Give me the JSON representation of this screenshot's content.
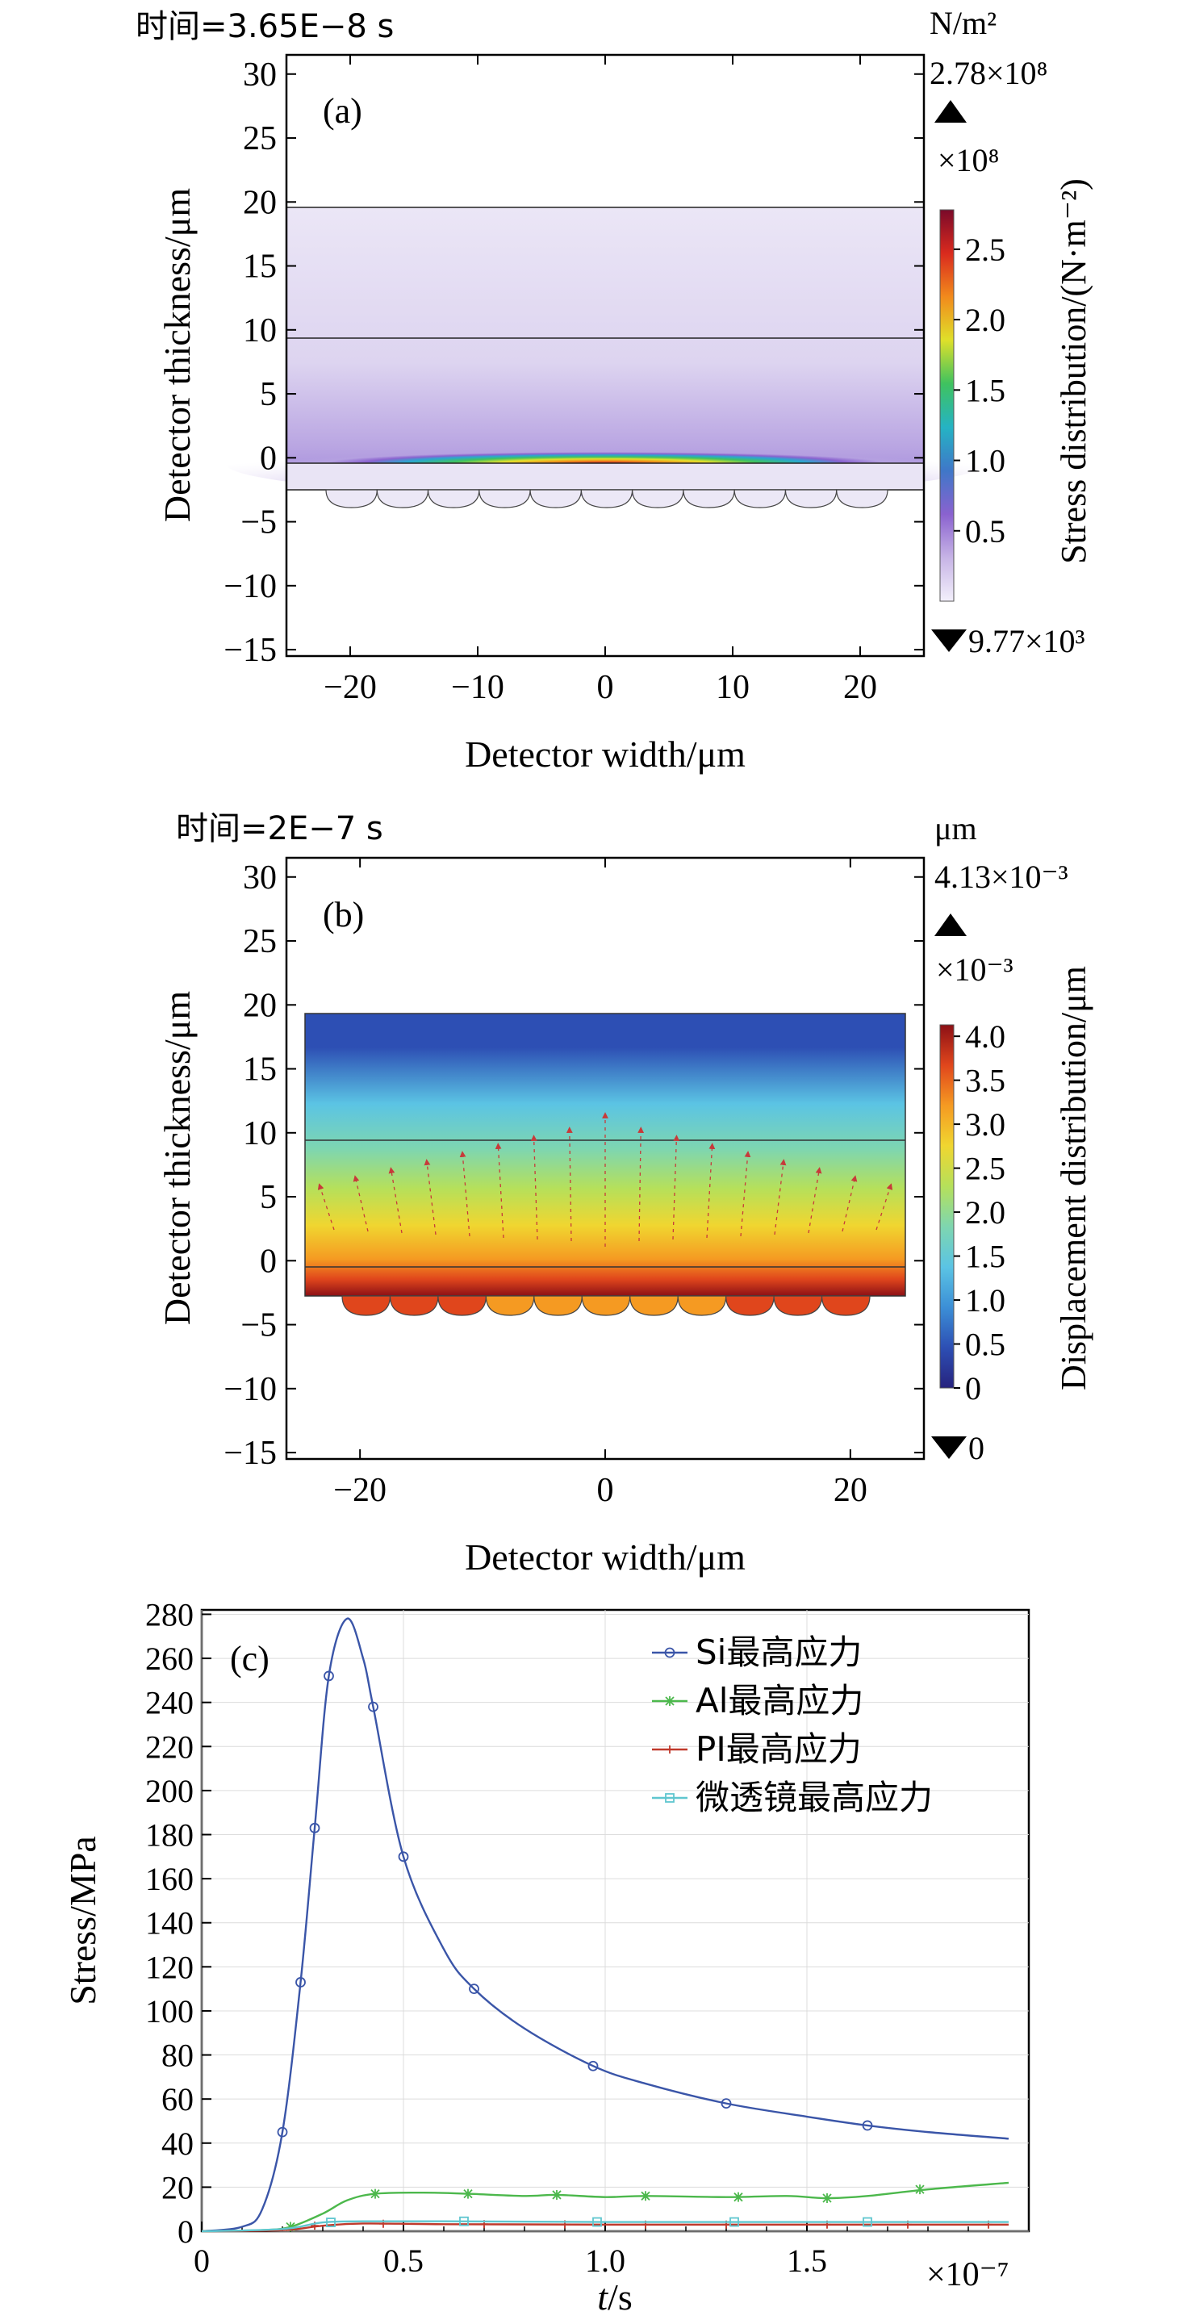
{
  "panel_a": {
    "time_label": "时间=3.65E−8 s",
    "panel_tag": "(a)",
    "unit_label": "N/m²",
    "max_label": "2.78×10⁸",
    "multiplier_label": "×10⁸",
    "min_label": "9.77×10³",
    "colorbar_title": "Stress distribution/(N·m⁻²)",
    "colorbar_ticks": [
      "0.5",
      "1.0",
      "1.5",
      "2.0",
      "2.5"
    ],
    "colorbar_values": [
      0.5,
      1.0,
      1.5,
      2.0,
      2.5
    ],
    "colorbar_range": [
      9.77e-05,
      2.78
    ],
    "colormap": [
      "#f3f0fb",
      "#c7b4e6",
      "#8a62cf",
      "#3f77c8",
      "#25b3c4",
      "#3fc25f",
      "#dfe02a",
      "#f28a1c",
      "#d92a1e",
      "#7a0a2a"
    ],
    "xlabel": "Detector width/μm",
    "ylabel": "Detector thickness/μm",
    "xticks": [
      "−20",
      "−10",
      "0",
      "10",
      "20"
    ],
    "xtick_values": [
      -20,
      -10,
      0,
      10,
      20
    ],
    "yticks": [
      "30",
      "25",
      "20",
      "15",
      "10",
      "5",
      "0",
      "−5",
      "−10",
      "−15"
    ],
    "ytick_values": [
      30,
      25,
      20,
      15,
      10,
      5,
      0,
      -5,
      -10,
      -15
    ],
    "xlim": [
      -25,
      25
    ],
    "ylim": [
      -15.5,
      31.5
    ]
  },
  "panel_b": {
    "time_label": "时间=2E−7 s",
    "panel_tag": "(b)",
    "unit_label": "μm",
    "max_label": "4.13×10⁻³",
    "multiplier_label": "×10⁻³",
    "min_label": "0",
    "colorbar_title": "Displacement distribution/μm",
    "colorbar_ticks": [
      "0",
      "0.5",
      "1.0",
      "1.5",
      "2.0",
      "2.5",
      "3.0",
      "3.5",
      "4.0"
    ],
    "colorbar_values": [
      0,
      0.5,
      1.0,
      1.5,
      2.0,
      2.5,
      3.0,
      3.5,
      4.0
    ],
    "colorbar_range": [
      0,
      4.13
    ],
    "colormap": [
      "#27237e",
      "#2d4fb4",
      "#3c8fd6",
      "#5bc4e4",
      "#7ed6b0",
      "#b6e05a",
      "#f0d630",
      "#f59a22",
      "#e0461c",
      "#8c1016"
    ],
    "xlabel": "Detector width/μm",
    "ylabel": "Detector thickness/μm",
    "xticks": [
      "−20",
      "0",
      "20"
    ],
    "xtick_values": [
      -20,
      0,
      20
    ],
    "yticks": [
      "30",
      "25",
      "20",
      "15",
      "10",
      "5",
      "0",
      "−5",
      "−10",
      "−15"
    ],
    "ytick_values": [
      30,
      25,
      20,
      15,
      10,
      5,
      0,
      -5,
      -10,
      -15
    ],
    "xlim": [
      -26,
      26
    ],
    "ylim": [
      -15.5,
      31.5
    ]
  },
  "chart_data": {
    "type": "line",
    "panel_tag": "(c)",
    "xlabel_italic": "t",
    "xlabel_unit": "/s",
    "ylabel": "Stress/MPa",
    "x_multiplier": "×10⁻⁷",
    "xlim": [
      0,
      2.05
    ],
    "ylim": [
      0,
      282
    ],
    "xticks": [
      "0",
      "0.5",
      "1.0",
      "1.5"
    ],
    "xtick_values": [
      0,
      0.5,
      1.0,
      1.5
    ],
    "yticks": [
      "0",
      "20",
      "40",
      "60",
      "80",
      "100",
      "120",
      "140",
      "160",
      "180",
      "200",
      "220",
      "240",
      "260",
      "280"
    ],
    "ytick_values": [
      0,
      20,
      40,
      60,
      80,
      100,
      120,
      140,
      160,
      180,
      200,
      220,
      240,
      260,
      280
    ],
    "grid": true,
    "legend_position": "top-right",
    "series": [
      {
        "name": "Si最高应力",
        "color": "#3a55a8",
        "marker": "circle",
        "x": [
          0,
          0.1,
          0.15,
          0.2,
          0.245,
          0.28,
          0.315,
          0.36,
          0.4,
          0.425,
          0.5,
          0.6,
          0.675,
          0.8,
          0.97,
          1.1,
          1.3,
          1.5,
          1.65,
          1.8,
          2.0
        ],
        "y": [
          0,
          2,
          10,
          45,
          113,
          183,
          252,
          278,
          260,
          238,
          170,
          128,
          110,
          92,
          75,
          67,
          58,
          52,
          48,
          45,
          42
        ],
        "markers_x": [
          0.2,
          0.245,
          0.28,
          0.315,
          0.425,
          0.5,
          0.675,
          0.97,
          1.3,
          1.65
        ],
        "markers_y": [
          45,
          113,
          183,
          252,
          238,
          170,
          110,
          75,
          58,
          48
        ]
      },
      {
        "name": "Al最高应力",
        "color": "#4cb84c",
        "marker": "x",
        "x": [
          0,
          0.15,
          0.22,
          0.3,
          0.36,
          0.43,
          0.55,
          0.66,
          0.8,
          0.88,
          1.0,
          1.1,
          1.3,
          1.45,
          1.55,
          1.65,
          1.8,
          2.0
        ],
        "y": [
          0,
          0.5,
          2,
          8,
          14,
          17,
          17.5,
          17,
          16,
          16.5,
          15.5,
          16,
          15.5,
          16,
          15,
          16,
          19,
          22
        ],
        "markers_x": [
          0.22,
          0.43,
          0.66,
          0.88,
          1.1,
          1.33,
          1.55,
          1.78
        ],
        "markers_y": [
          2,
          17,
          17,
          16.5,
          16,
          15.5,
          15,
          19
        ]
      },
      {
        "name": "PI最高应力",
        "color": "#c0392b",
        "marker": "plus",
        "x": [
          0,
          0.2,
          0.3,
          0.4,
          0.6,
          1.0,
          1.5,
          2.0
        ],
        "y": [
          0,
          0.5,
          2.5,
          3.5,
          3.2,
          3.0,
          3.0,
          3.0
        ],
        "markers_x": [
          0.28,
          0.45,
          0.7,
          0.9,
          1.1,
          1.3,
          1.55,
          1.75,
          1.95
        ],
        "markers_y": [
          2.5,
          3.4,
          3.2,
          3.1,
          3.0,
          3.0,
          3.0,
          3.0,
          3.0
        ]
      },
      {
        "name": "微透镜最高应力",
        "color": "#5fc6cf",
        "marker": "square",
        "x": [
          0,
          0.2,
          0.3,
          0.4,
          0.6,
          1.0,
          1.5,
          2.0
        ],
        "y": [
          0,
          1,
          4,
          4.5,
          4.5,
          4.2,
          4.2,
          4.2
        ],
        "markers_x": [
          0.32,
          0.65,
          0.98,
          1.32,
          1.65
        ],
        "markers_y": [
          4,
          4.5,
          4.2,
          4.2,
          4.2
        ]
      }
    ]
  }
}
